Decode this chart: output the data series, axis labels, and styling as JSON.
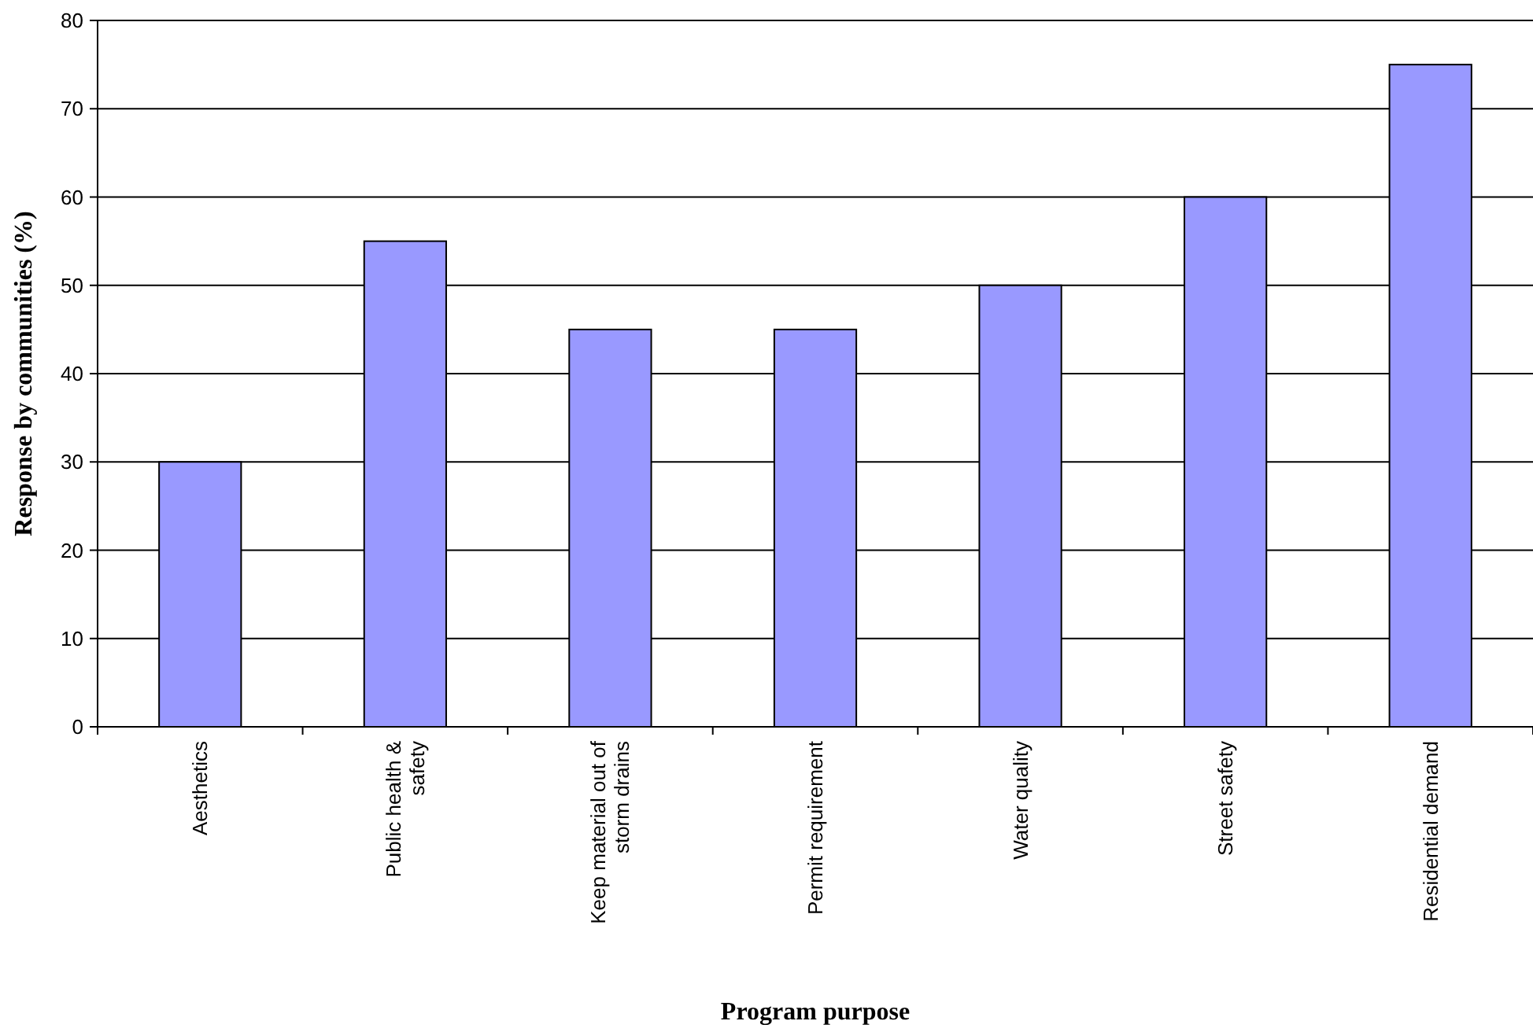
{
  "chart_data": {
    "type": "bar",
    "xlabel": "Program purpose",
    "ylabel": "Response by communities (%)",
    "categories": [
      "Aesthetics",
      "Public health & safety",
      "Keep material out of storm drains",
      "Permit requirement",
      "Water quality",
      "Street safety",
      "Residential demand"
    ],
    "values": [
      30,
      55,
      45,
      45,
      50,
      60,
      75
    ],
    "color": "#9999ff",
    "ylim": [
      0,
      80
    ],
    "yticks": [
      0,
      10,
      20,
      30,
      40,
      50,
      60,
      70,
      80
    ],
    "grid": "y"
  }
}
